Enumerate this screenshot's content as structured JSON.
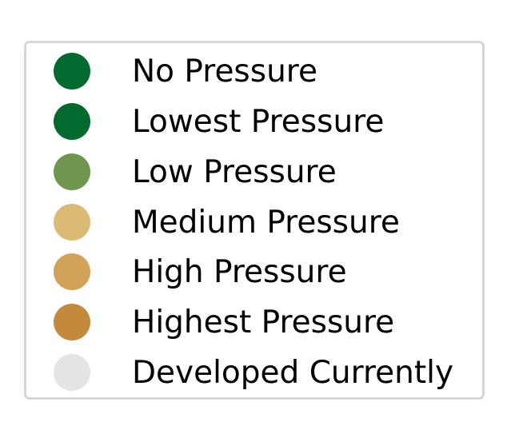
{
  "legend": {
    "items": [
      {
        "label": "No Pressure",
        "color": "#006a2f"
      },
      {
        "label": "Lowest Pressure",
        "color": "#006a2f"
      },
      {
        "label": "Low Pressure",
        "color": "#6f964e"
      },
      {
        "label": "Medium Pressure",
        "color": "#dbbb74"
      },
      {
        "label": "High Pressure",
        "color": "#d1a257"
      },
      {
        "label": "Highest Pressure",
        "color": "#c28a3a"
      },
      {
        "label": "Developed Currently",
        "color": "#e4e4e4"
      }
    ]
  }
}
